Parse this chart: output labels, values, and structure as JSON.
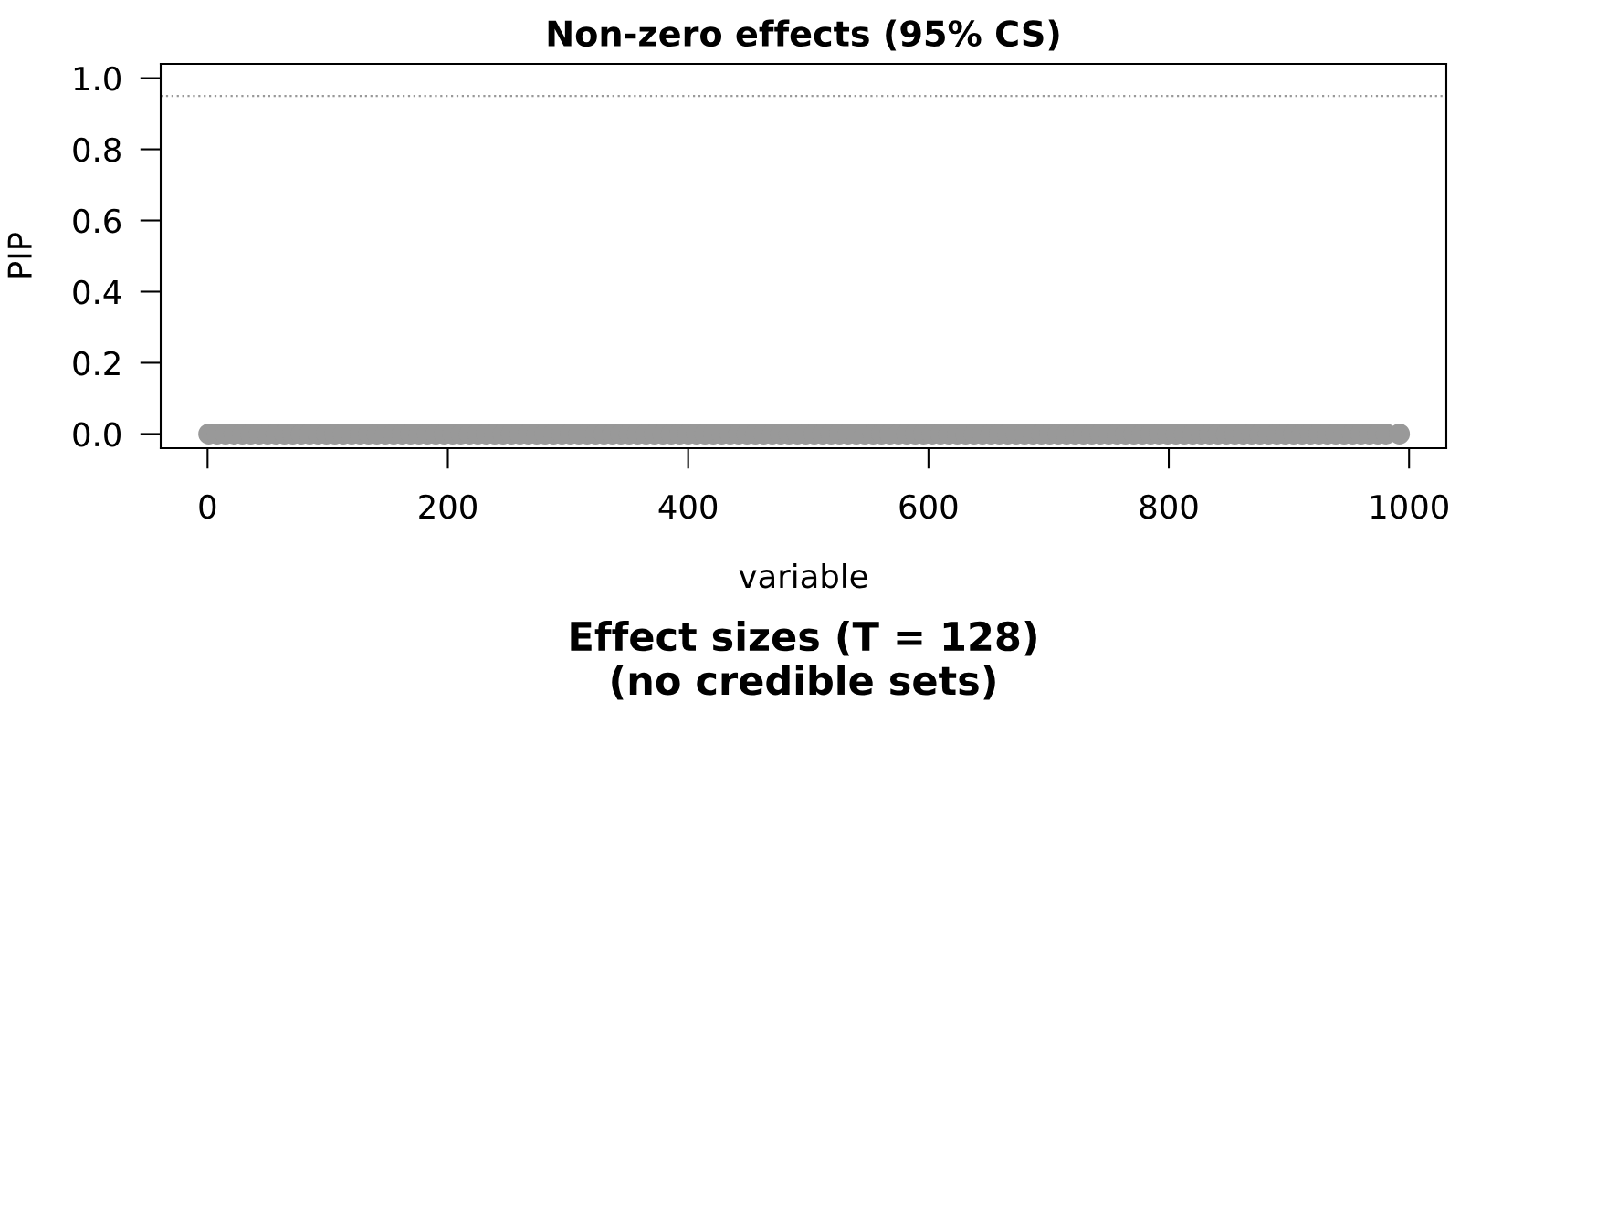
{
  "chart_data": {
    "type": "scatter",
    "title": "Non-zero effects (95% CS)",
    "xlabel": "variable",
    "ylabel": "PIP",
    "annotations": [
      "Effect sizes (T = 128)\n(no credible sets)"
    ],
    "x": [
      1,
      8,
      15,
      22,
      29,
      36,
      43,
      50,
      57,
      64,
      71,
      78,
      85,
      92,
      99,
      106,
      113,
      120,
      127,
      134,
      141,
      148,
      155,
      162,
      169,
      176,
      183,
      190,
      197,
      204,
      211,
      218,
      225,
      232,
      239,
      246,
      253,
      260,
      267,
      274,
      281,
      288,
      295,
      302,
      309,
      316,
      323,
      330,
      337,
      344,
      351,
      358,
      365,
      372,
      379,
      386,
      393,
      400,
      407,
      414,
      421,
      428,
      435,
      442,
      449,
      456,
      463,
      470,
      477,
      484,
      491,
      498,
      505,
      512,
      519,
      526,
      533,
      540,
      547,
      554,
      561,
      568,
      575,
      582,
      589,
      596,
      603,
      610,
      617,
      624,
      631,
      638,
      645,
      652,
      659,
      666,
      673,
      680,
      687,
      694,
      701,
      708,
      715,
      722,
      729,
      736,
      743,
      750,
      757,
      764,
      771,
      778,
      785,
      792,
      799,
      806,
      813,
      820,
      827,
      834,
      841,
      848,
      855,
      862,
      869,
      876,
      883,
      890,
      897,
      904,
      911,
      918,
      925,
      932,
      939,
      946,
      953,
      960,
      967,
      974,
      981,
      992
    ],
    "values": [
      0,
      0,
      0,
      0,
      0,
      0,
      0,
      0,
      0,
      0,
      0,
      0,
      0,
      0,
      0,
      0,
      0,
      0,
      0,
      0,
      0,
      0,
      0,
      0,
      0,
      0,
      0,
      0,
      0,
      0,
      0,
      0,
      0,
      0,
      0,
      0,
      0,
      0,
      0,
      0,
      0,
      0,
      0,
      0,
      0,
      0,
      0,
      0,
      0,
      0,
      0,
      0,
      0,
      0,
      0,
      0,
      0,
      0,
      0,
      0,
      0,
      0,
      0,
      0,
      0,
      0,
      0,
      0,
      0,
      0,
      0,
      0,
      0,
      0,
      0,
      0,
      0,
      0,
      0,
      0,
      0,
      0,
      0,
      0,
      0,
      0,
      0,
      0,
      0,
      0,
      0,
      0,
      0,
      0,
      0,
      0,
      0,
      0,
      0,
      0,
      0,
      0,
      0,
      0,
      0,
      0,
      0,
      0,
      0,
      0,
      0,
      0,
      0,
      0,
      0,
      0,
      0,
      0,
      0,
      0,
      0,
      0,
      0,
      0,
      0,
      0,
      0,
      0,
      0,
      0,
      0,
      0,
      0,
      0,
      0,
      0,
      0,
      0,
      0,
      0,
      0,
      0
    ],
    "color": "#999999",
    "marker": "circle",
    "xlim": [
      -39,
      1031
    ],
    "ylim": [
      -0.04,
      1.04
    ],
    "xticks": [
      0,
      200,
      400,
      600,
      800,
      1000
    ],
    "yticks": [
      {
        "value": 0,
        "label": "0.0"
      },
      0.2,
      0.4,
      0.6,
      0.8,
      {
        "value": 1,
        "label": "1.0"
      }
    ],
    "ref_lines": [
      {
        "axis": "y",
        "value": 0.95,
        "color": "#999999",
        "line_style": "dotted"
      }
    ],
    "grid": false
  }
}
